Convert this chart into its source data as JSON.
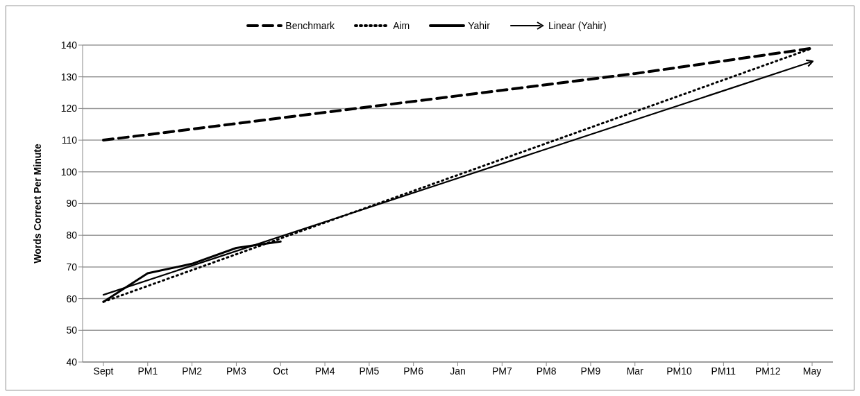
{
  "chart_data": {
    "type": "line",
    "ylabel": "Words Correct Per Minute",
    "categories": [
      "Sept",
      "PM1",
      "PM2",
      "PM3",
      "Oct",
      "PM4",
      "PM5",
      "PM6",
      "Jan",
      "PM7",
      "PM8",
      "PM9",
      "Mar",
      "PM10",
      "PM11",
      "PM12",
      "May"
    ],
    "series": [
      {
        "name": "Benchmark",
        "color": "#000000",
        "line_style": "dashed",
        "x": [
          "Sept",
          "Oct",
          "Jan",
          "Mar",
          "May"
        ],
        "values": [
          110,
          117,
          124,
          131,
          139
        ]
      },
      {
        "name": "Aim",
        "color": "#000000",
        "line_style": "dotted",
        "x": [
          "Sept",
          "May"
        ],
        "values": [
          59,
          139
        ]
      },
      {
        "name": "Yahir",
        "color": "#000000",
        "line_style": "solid",
        "x": [
          "Sept",
          "PM1",
          "PM2",
          "PM3",
          "Oct"
        ],
        "values": [
          59,
          68,
          71,
          76,
          78
        ]
      },
      {
        "name": "Linear  (Yahir)",
        "color": "#000000",
        "type": "line",
        "line_style": "solid",
        "x": [
          "Sept",
          "May"
        ],
        "values": [
          61.2,
          134.8
        ]
      }
    ],
    "ylim": [
      40,
      140
    ],
    "yticks": [
      40,
      50,
      60,
      70,
      80,
      90,
      100,
      110,
      120,
      130,
      140
    ],
    "grid": "y",
    "legend": "top",
    "marker": "none"
  }
}
